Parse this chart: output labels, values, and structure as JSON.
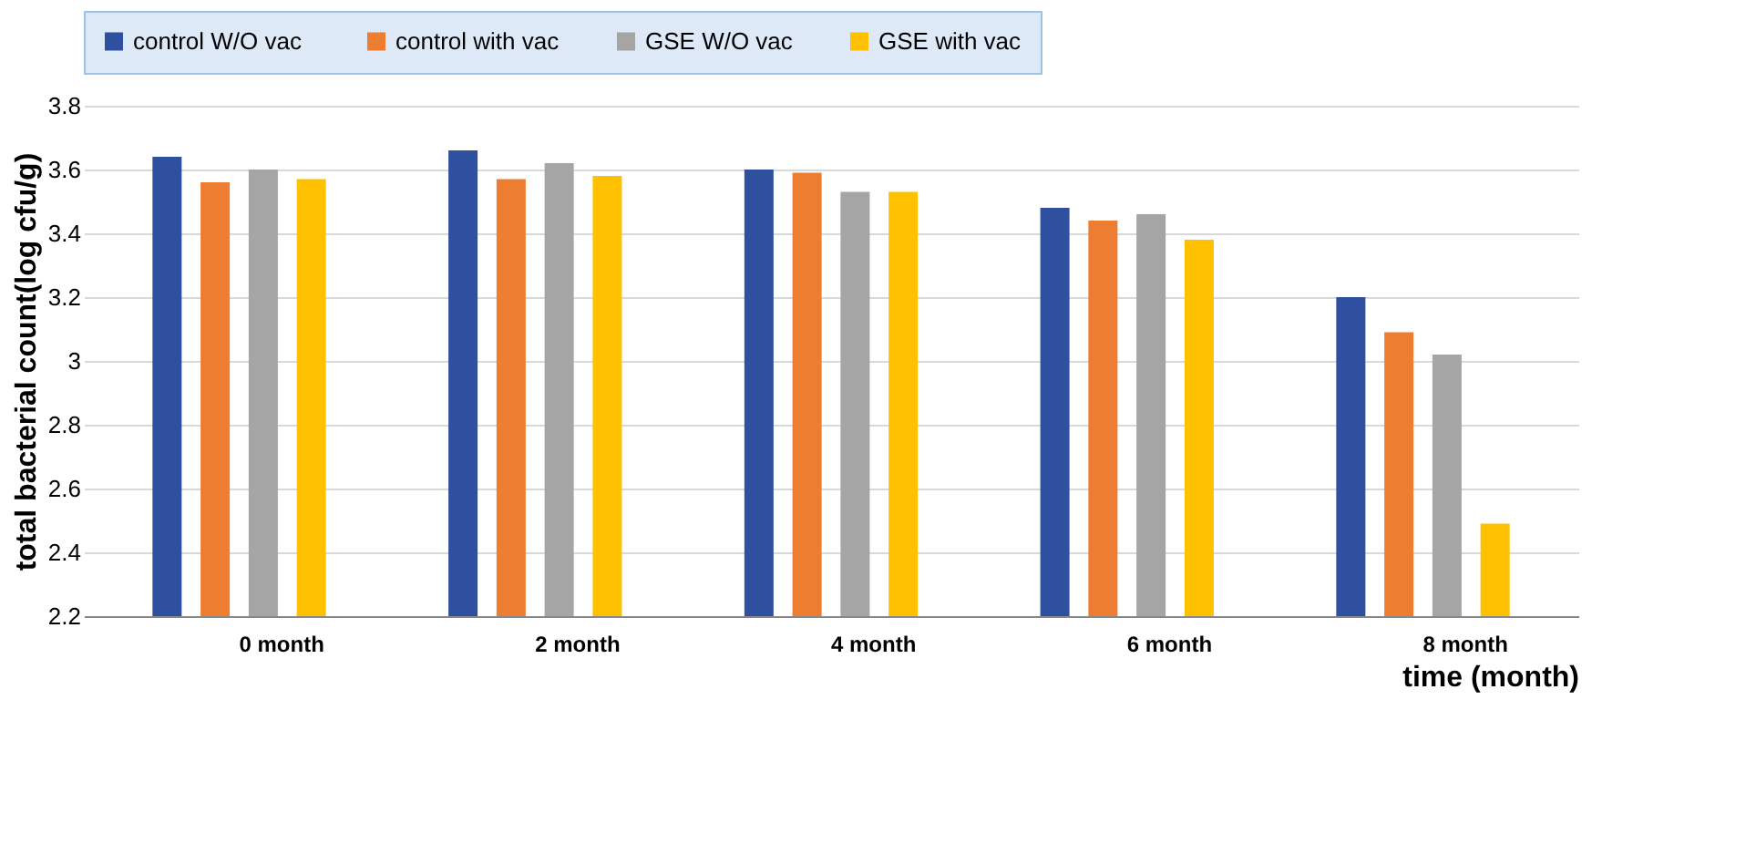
{
  "chart_data": {
    "type": "bar",
    "categories": [
      "0 month",
      "2 month",
      "4 month",
      "6 month",
      "8 month"
    ],
    "series": [
      {
        "name": "control  W/O vac",
        "color": "#2f4f9f",
        "values": [
          3.64,
          3.66,
          3.6,
          3.48,
          3.2
        ]
      },
      {
        "name": "control with vac",
        "color": "#ed7d31",
        "values": [
          3.56,
          3.57,
          3.59,
          3.44,
          3.09
        ]
      },
      {
        "name": "GSE W/O vac",
        "color": "#a5a5a5",
        "values": [
          3.6,
          3.62,
          3.53,
          3.46,
          3.02
        ]
      },
      {
        "name": "GSE with vac",
        "color": "#ffc000",
        "values": [
          3.57,
          3.58,
          3.53,
          3.38,
          2.49
        ]
      }
    ],
    "xlabel": "time (month)",
    "ylabel": "total bacterial count(log cfu/g)",
    "ylim": [
      2.2,
      3.8
    ],
    "yticks": [
      2.2,
      2.4,
      2.6,
      2.8,
      {
        "value": 3,
        "label": "3"
      },
      3.2,
      3.4,
      3.6,
      3.8
    ],
    "grid": "y",
    "legend": "top"
  }
}
